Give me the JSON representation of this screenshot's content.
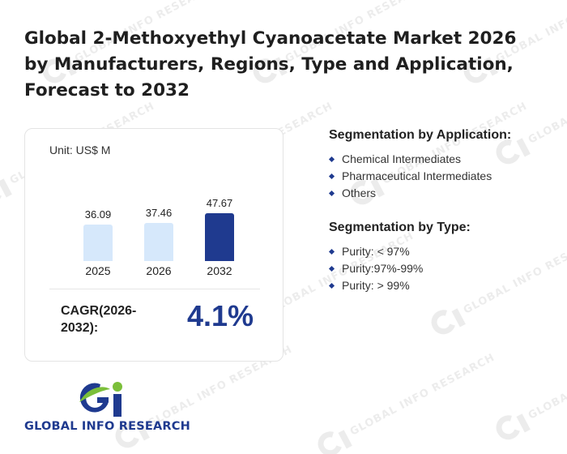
{
  "title": "Global 2-Methoxyethyl Cyanoacetate Market 2026 by Manufacturers, Regions, Type and Application, Forecast to 2032",
  "unit_label": "Unit: US$ M",
  "chart_data": {
    "type": "bar",
    "categories": [
      "2025",
      "2026",
      "2032"
    ],
    "values": [
      36.09,
      37.46,
      47.67
    ],
    "value_labels": [
      "36.09",
      "37.46",
      "47.67"
    ],
    "ylim": [
      0,
      60
    ],
    "colors": [
      "#d6e8fb",
      "#d6e8fb",
      "#1f3a8f"
    ]
  },
  "cagr": {
    "label": "CAGR(2026-2032):",
    "value": "4.1%"
  },
  "segmentation": {
    "application": {
      "title": "Segmentation by Application:",
      "items": [
        "Chemical Intermediates",
        "Pharmaceutical Intermediates",
        "Others"
      ]
    },
    "type": {
      "title": "Segmentation by Type:",
      "items": [
        "Purity: < 97%",
        "Purity:97%-99%",
        "Purity: > 99%"
      ]
    }
  },
  "logo": {
    "text": "GLOBAL INFO RESEARCH",
    "mark_colors": {
      "g": "#1f3a8f",
      "i_stem": "#1f3a8f",
      "leaf": "#7bbf3a"
    }
  },
  "watermark": {
    "text": "GLOBAL INFO RESEARCH"
  }
}
